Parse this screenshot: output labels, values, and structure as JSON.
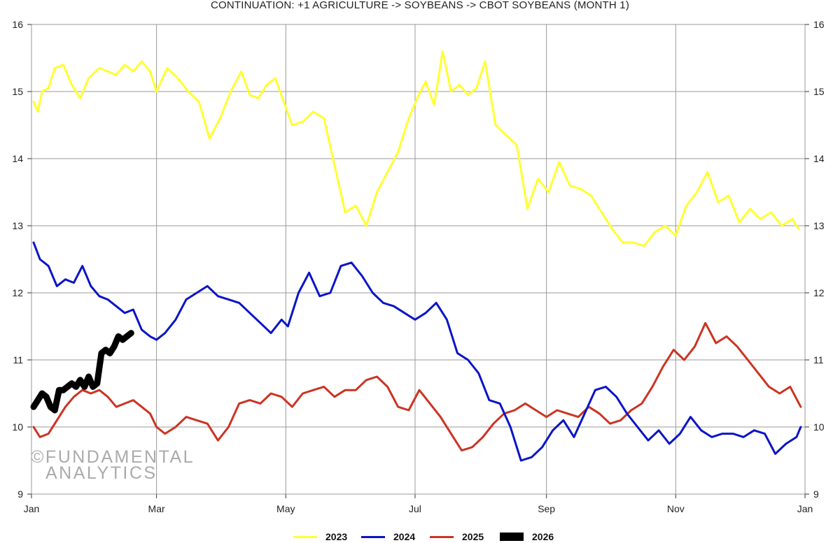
{
  "chart_data": {
    "type": "line",
    "title": "CONTINUATION: +1 AGRICULTURE -> SOYBEANS -> CBOT SOYBEANS (MONTH 1)",
    "x_ticks": [
      "Jan",
      "Mar",
      "May",
      "Jul",
      "Sep",
      "Nov",
      "Jan"
    ],
    "y_ticks": [
      "9",
      "10",
      "11",
      "12",
      "13",
      "14",
      "15",
      "16"
    ],
    "ylim": [
      9,
      16
    ],
    "grid": true,
    "legend_position": "bottom",
    "series": [
      {
        "name": "2023",
        "color": "#ffff33",
        "x": [
          "Jan 2",
          "Jan 4",
          "Jan 6",
          "Jan 9",
          "Jan 12",
          "Jan 16",
          "Jan 20",
          "Jan 24",
          "Jan 28",
          "Feb 2",
          "Feb 6",
          "Feb 10",
          "Feb 14",
          "Feb 18",
          "Feb 22",
          "Feb 26",
          "Mar 1",
          "Mar 6",
          "Mar 11",
          "Mar 16",
          "Mar 21",
          "Mar 26",
          "Mar 31",
          "Apr 5",
          "Apr 10",
          "Apr 14",
          "Apr 18",
          "Apr 22",
          "Apr 26",
          "Apr 30",
          "May 4",
          "May 9",
          "May 14",
          "May 19",
          "May 24",
          "May 29",
          "Jun 3",
          "Jun 8",
          "Jun 13",
          "Jun 18",
          "Jun 23",
          "Jun 28",
          "Jul 2",
          "Jul 6",
          "Jul 10",
          "Jul 14",
          "Jul 18",
          "Jul 22",
          "Jul 26",
          "Jul 30",
          "Aug 3",
          "Aug 8",
          "Aug 13",
          "Aug 18",
          "Aug 23",
          "Aug 28",
          "Sep 2",
          "Sep 7",
          "Sep 12",
          "Sep 17",
          "Sep 22",
          "Sep 27",
          "Oct 2",
          "Oct 7",
          "Oct 12",
          "Oct 17",
          "Oct 22",
          "Oct 27",
          "Nov 1",
          "Nov 6",
          "Nov 11",
          "Nov 16",
          "Nov 21",
          "Nov 26",
          "Dec 1",
          "Dec 6",
          "Dec 11",
          "Dec 16",
          "Dec 21",
          "Dec 26",
          "Dec 29"
        ],
        "values": [
          14.85,
          14.7,
          15.0,
          15.05,
          15.35,
          15.4,
          15.1,
          14.9,
          15.2,
          15.35,
          15.3,
          15.25,
          15.4,
          15.3,
          15.45,
          15.3,
          15.0,
          15.35,
          15.2,
          15.0,
          14.85,
          14.3,
          14.6,
          15.0,
          15.3,
          14.95,
          14.9,
          15.1,
          15.2,
          14.85,
          14.5,
          14.55,
          14.7,
          14.6,
          13.9,
          13.2,
          13.3,
          13.0,
          13.5,
          13.8,
          14.1,
          14.6,
          14.9,
          15.15,
          14.8,
          15.6,
          15.0,
          15.1,
          14.95,
          15.05,
          15.45,
          14.5,
          14.35,
          14.2,
          13.25,
          13.7,
          13.5,
          13.95,
          13.6,
          13.55,
          13.45,
          13.2,
          12.95,
          12.75,
          12.75,
          12.7,
          12.9,
          13.0,
          12.85,
          13.3,
          13.5,
          13.8,
          13.35,
          13.45,
          13.05,
          13.25,
          13.1,
          13.2,
          13.0,
          13.1,
          12.95
        ]
      },
      {
        "name": "2024",
        "color": "#0a14c8",
        "x": [
          "Jan 2",
          "Jan 5",
          "Jan 9",
          "Jan 13",
          "Jan 17",
          "Jan 21",
          "Jan 25",
          "Jan 29",
          "Feb 2",
          "Feb 6",
          "Feb 10",
          "Feb 14",
          "Feb 18",
          "Feb 22",
          "Feb 26",
          "Mar 1",
          "Mar 5",
          "Mar 10",
          "Mar 15",
          "Mar 20",
          "Mar 25",
          "Mar 30",
          "Apr 4",
          "Apr 9",
          "Apr 14",
          "Apr 19",
          "Apr 24",
          "Apr 29",
          "May 2",
          "May 7",
          "May 12",
          "May 17",
          "May 22",
          "May 27",
          "Jun 1",
          "Jun 6",
          "Jun 11",
          "Jun 16",
          "Jun 21",
          "Jun 26",
          "Jul 1",
          "Jul 6",
          "Jul 11",
          "Jul 16",
          "Jul 21",
          "Jul 26",
          "Jul 31",
          "Aug 5",
          "Aug 10",
          "Aug 15",
          "Aug 20",
          "Aug 25",
          "Aug 30",
          "Sep 4",
          "Sep 9",
          "Sep 14",
          "Sep 19",
          "Sep 24",
          "Sep 29",
          "Oct 4",
          "Oct 9",
          "Oct 14",
          "Oct 19",
          "Oct 24",
          "Oct 29",
          "Nov 3",
          "Nov 8",
          "Nov 13",
          "Nov 18",
          "Nov 23",
          "Nov 28",
          "Dec 3",
          "Dec 8",
          "Dec 13",
          "Dec 18",
          "Dec 23",
          "Dec 28",
          "Dec 30"
        ],
        "values": [
          12.75,
          12.5,
          12.4,
          12.1,
          12.2,
          12.15,
          12.4,
          12.1,
          11.95,
          11.9,
          11.8,
          11.7,
          11.75,
          11.45,
          11.35,
          11.3,
          11.4,
          11.6,
          11.9,
          12.0,
          12.1,
          11.95,
          11.9,
          11.85,
          11.7,
          11.55,
          11.4,
          11.6,
          11.5,
          12.0,
          12.3,
          11.95,
          12.0,
          12.4,
          12.45,
          12.25,
          12.0,
          11.85,
          11.8,
          11.7,
          11.6,
          11.7,
          11.85,
          11.6,
          11.1,
          11.0,
          10.8,
          10.4,
          10.35,
          10.0,
          9.5,
          9.55,
          9.7,
          9.95,
          10.1,
          9.85,
          10.2,
          10.55,
          10.6,
          10.45,
          10.2,
          10.0,
          9.8,
          9.95,
          9.75,
          9.9,
          10.15,
          9.95,
          9.85,
          9.9,
          9.9,
          9.85,
          9.95,
          9.9,
          9.6,
          9.75,
          9.85,
          10.0
        ]
      },
      {
        "name": "2025",
        "color": "#cc3322",
        "x": [
          "Jan 2",
          "Jan 5",
          "Jan 9",
          "Jan 13",
          "Jan 17",
          "Jan 21",
          "Jan 25",
          "Jan 29",
          "Feb 2",
          "Feb 6",
          "Feb 10",
          "Feb 14",
          "Feb 18",
          "Feb 22",
          "Feb 26",
          "Mar 1",
          "Mar 5",
          "Mar 10",
          "Mar 15",
          "Mar 20",
          "Mar 25",
          "Mar 30",
          "Apr 4",
          "Apr 9",
          "Apr 14",
          "Apr 19",
          "Apr 24",
          "Apr 29",
          "May 4",
          "May 9",
          "May 14",
          "May 19",
          "May 24",
          "May 29",
          "Jun 3",
          "Jun 8",
          "Jun 13",
          "Jun 18",
          "Jun 23",
          "Jun 28",
          "Jul 3",
          "Jul 8",
          "Jul 13",
          "Jul 18",
          "Jul 23",
          "Jul 28",
          "Aug 2",
          "Aug 7",
          "Aug 12",
          "Aug 17",
          "Aug 22",
          "Aug 27",
          "Sep 1",
          "Sep 6",
          "Sep 11",
          "Sep 16",
          "Sep 21",
          "Sep 26",
          "Oct 1",
          "Oct 6",
          "Oct 11",
          "Oct 16",
          "Oct 21",
          "Oct 26",
          "Oct 31",
          "Nov 5",
          "Nov 10",
          "Nov 15",
          "Nov 20",
          "Nov 25",
          "Nov 30",
          "Dec 5",
          "Dec 10",
          "Dec 15",
          "Dec 20",
          "Dec 25",
          "Dec 30"
        ],
        "values": [
          10.0,
          9.85,
          9.9,
          10.1,
          10.3,
          10.45,
          10.55,
          10.5,
          10.55,
          10.45,
          10.3,
          10.35,
          10.4,
          10.3,
          10.2,
          10.0,
          9.9,
          10.0,
          10.15,
          10.1,
          10.05,
          9.8,
          10.0,
          10.35,
          10.4,
          10.35,
          10.5,
          10.45,
          10.3,
          10.5,
          10.55,
          10.6,
          10.45,
          10.55,
          10.55,
          10.7,
          10.75,
          10.6,
          10.3,
          10.25,
          10.55,
          10.35,
          10.15,
          9.9,
          9.65,
          9.7,
          9.85,
          10.05,
          10.2,
          10.25,
          10.35,
          10.25,
          10.15,
          10.25,
          10.2,
          10.15,
          10.3,
          10.2,
          10.05,
          10.1,
          10.25,
          10.35,
          10.6,
          10.9,
          11.15,
          11.0,
          11.2,
          11.55,
          11.25,
          11.35,
          11.2,
          11.0,
          10.8,
          10.6,
          10.5,
          10.6,
          10.3
        ]
      },
      {
        "name": "2026",
        "color": "#000000",
        "x": [
          "Jan 2",
          "Jan 4",
          "Jan 6",
          "Jan 8",
          "Jan 10",
          "Jan 12",
          "Jan 14",
          "Jan 16",
          "Jan 18",
          "Jan 20",
          "Jan 22",
          "Jan 24",
          "Jan 26",
          "Jan 28",
          "Jan 30",
          "Feb 1",
          "Feb 3",
          "Feb 5",
          "Feb 7",
          "Feb 9",
          "Feb 11",
          "Feb 13",
          "Feb 15",
          "Feb 17"
        ],
        "values": [
          10.3,
          10.4,
          10.5,
          10.45,
          10.3,
          10.25,
          10.55,
          10.55,
          10.6,
          10.65,
          10.6,
          10.7,
          10.6,
          10.75,
          10.6,
          10.65,
          11.1,
          11.15,
          11.1,
          11.2,
          11.35,
          11.3,
          11.35,
          11.4
        ]
      }
    ]
  },
  "watermark": {
    "line1": "©FUNDAMENTAL",
    "line2": "ANALYTICS"
  }
}
